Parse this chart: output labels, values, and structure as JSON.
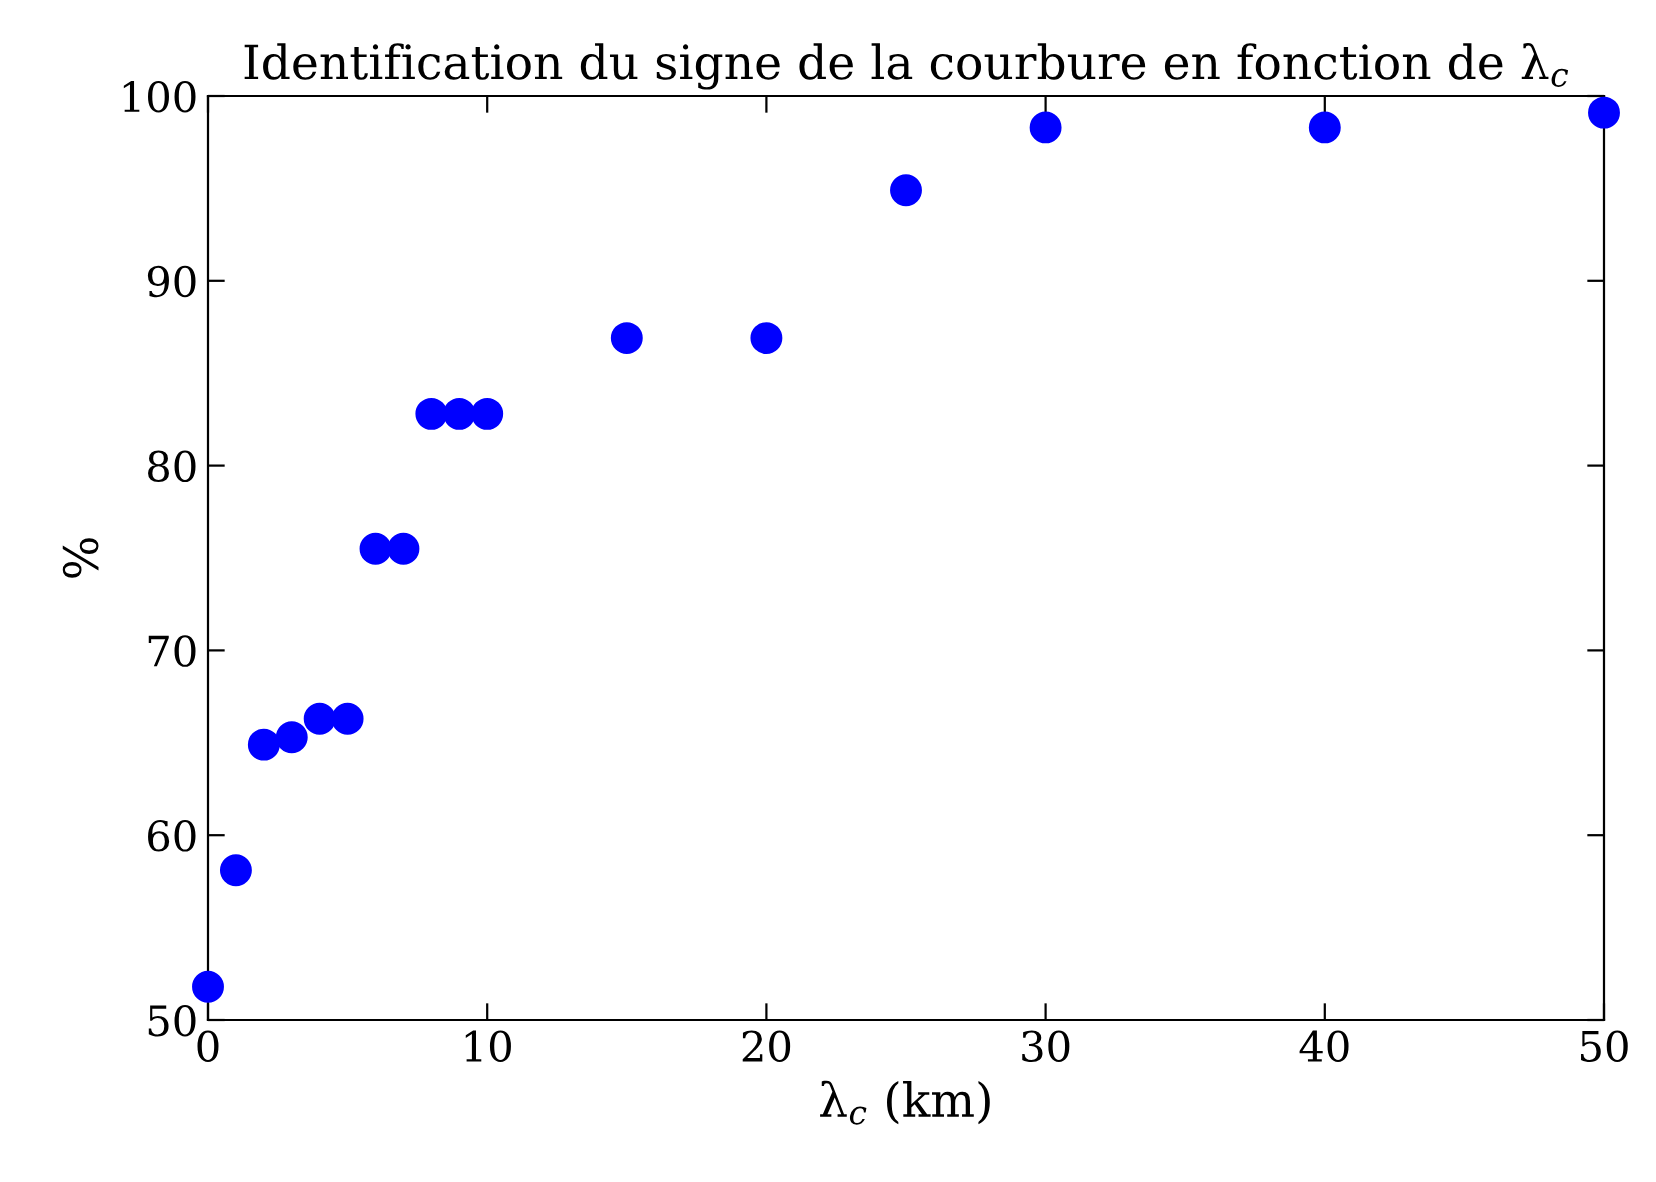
{
  "chart_data": {
    "type": "scatter",
    "title": "Identification du signe de la courbure en fonction de λ$_{c}$",
    "xlabel": "λ$_{c}$ (km)",
    "ylabel": "%",
    "x": [
      0,
      1,
      2,
      3,
      4,
      5,
      6,
      7,
      8,
      9,
      10,
      15,
      20,
      25,
      30,
      40,
      50
    ],
    "series": [
      {
        "color": "#0000ff",
        "values": [
          51.8,
          58.1,
          64.9,
          65.3,
          66.3,
          66.3,
          75.5,
          75.5,
          82.8,
          82.8,
          82.8,
          86.9,
          86.9,
          94.9,
          98.3,
          98.3,
          99.1
        ]
      }
    ],
    "xlim": [
      0,
      50
    ],
    "ylim": [
      50,
      100
    ],
    "xticks": [
      0,
      10,
      20,
      30,
      40,
      50
    ],
    "yticks": [
      50,
      60,
      70,
      80,
      90,
      100
    ],
    "marker": "circle",
    "grid": false,
    "legend": false
  }
}
